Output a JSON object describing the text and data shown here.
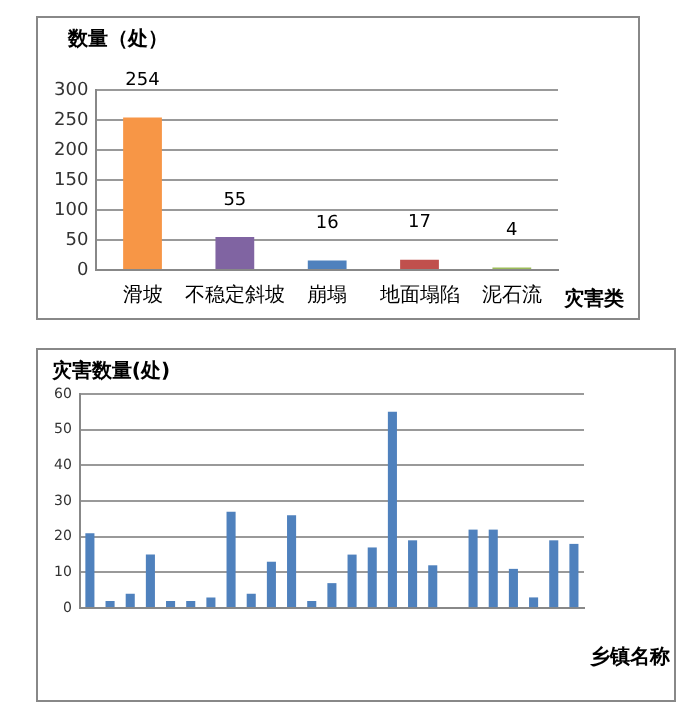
{
  "chart_data": [
    {
      "type": "bar",
      "ylabel": "数量（处）",
      "xlabel": "灾害类",
      "categories": [
        "滑坡",
        "不稳定斜坡",
        "崩塌",
        "地面塌陷",
        "泥石流"
      ],
      "values": [
        254,
        55,
        16,
        17,
        4
      ],
      "colors": [
        "#f79646",
        "#8064a2",
        "#4f81bd",
        "#c0504d",
        "#9bbb59"
      ],
      "ylim": [
        0,
        300
      ],
      "yticks": [
        0,
        50,
        100,
        150,
        200,
        250,
        300
      ],
      "grid": "y",
      "data_labels": true
    },
    {
      "type": "bar",
      "ylabel": "灾害数量(处)",
      "xlabel": "乡镇名称",
      "categories": [
        null,
        null,
        null,
        null,
        null,
        null,
        null,
        null,
        null,
        null,
        null,
        null,
        null,
        null,
        null,
        null,
        null,
        null,
        null,
        null,
        null,
        null,
        null,
        null,
        null
      ],
      "values": [
        21,
        2,
        4,
        15,
        2,
        2,
        3,
        27,
        4,
        13,
        26,
        2,
        7,
        15,
        17,
        55,
        19,
        12,
        null,
        22,
        22,
        11,
        3,
        19,
        18
      ],
      "color": "#4f81bd",
      "ylim": [
        0,
        60
      ],
      "yticks": [
        0,
        10,
        20,
        30,
        40,
        50,
        60
      ],
      "grid": "y"
    }
  ]
}
